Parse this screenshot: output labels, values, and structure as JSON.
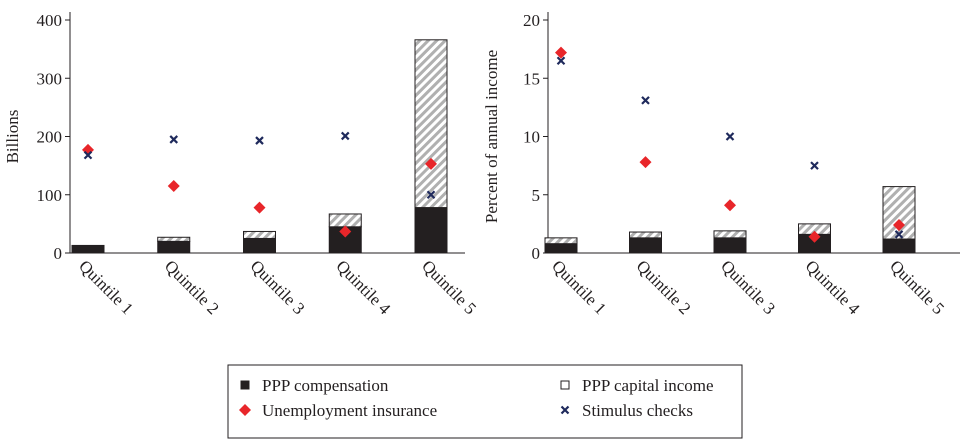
{
  "chart_data": [
    {
      "type": "bar",
      "y_label": "Billions",
      "categories": [
        "Quintile 1",
        "Quintile 2",
        "Quintile 3",
        "Quintile 4",
        "Quintile 5"
      ],
      "ylim": [
        0,
        400
      ],
      "yticks": [
        0,
        100,
        200,
        300,
        400
      ],
      "series": [
        {
          "name": "PPP compensation",
          "type": "stacked-bar",
          "color": "#231f20",
          "values": [
            13,
            20,
            25,
            45,
            78
          ]
        },
        {
          "name": "PPP capital income",
          "type": "stacked-bar",
          "color": "hatch",
          "values": [
            0,
            7,
            12,
            22,
            288
          ]
        },
        {
          "name": "Unemployment insurance",
          "type": "diamond",
          "color": "#e8262a",
          "values": [
            177,
            115,
            78,
            37,
            153
          ]
        },
        {
          "name": "Stimulus checks",
          "type": "cross",
          "color": "#1f2a5c",
          "values": [
            168,
            195,
            193,
            201,
            100
          ]
        }
      ]
    },
    {
      "type": "bar",
      "y_label": "Percent of annual income",
      "categories": [
        "Quintile 1",
        "Quintile 2",
        "Quintile 3",
        "Quintile 4",
        "Quintile 5"
      ],
      "ylim": [
        0,
        20
      ],
      "yticks": [
        0,
        5,
        10,
        15,
        20
      ],
      "series": [
        {
          "type": "stacked-bar",
          "color": "#231f20",
          "values": [
            0.8,
            1.3,
            1.3,
            1.6,
            1.2
          ]
        },
        {
          "type": "stacked-bar",
          "color": "hatch",
          "values": [
            0.5,
            0.5,
            0.6,
            0.9,
            4.5
          ]
        },
        {
          "type": "diamond",
          "color": "#e8262a",
          "values": [
            17.2,
            7.8,
            4.1,
            1.4,
            2.4
          ]
        },
        {
          "type": "cross",
          "color": "#1f2a5c",
          "values": [
            16.5,
            13.1,
            10.0,
            7.5,
            1.6
          ]
        }
      ]
    }
  ]
}
